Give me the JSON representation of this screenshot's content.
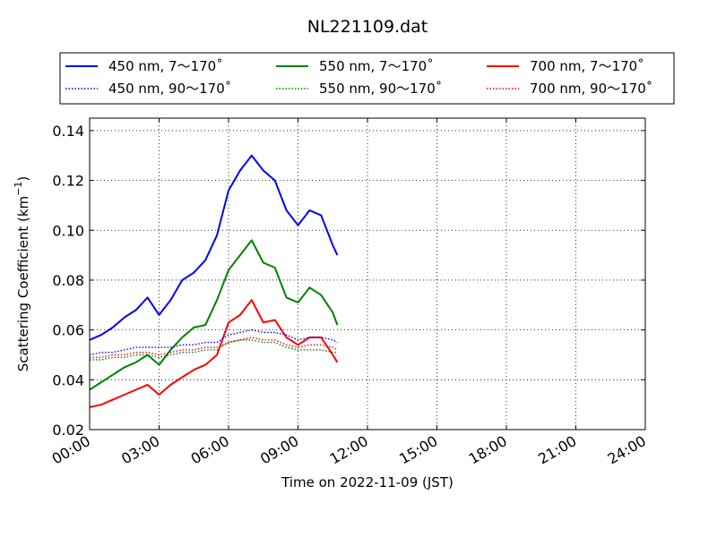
{
  "chart_data": {
    "type": "line",
    "title": "NL221109.dat",
    "xlabel": "Time on 2022-11-09 (JST)",
    "ylabel": "Scattering Coefficient (km",
    "ylabel_sup": "−1",
    "ylabel_end": ")",
    "xlim": [
      0,
      24
    ],
    "ylim": [
      0.02,
      0.145
    ],
    "grid": true,
    "legend_position": "top",
    "x_ticks": [
      "00:00",
      "03:00",
      "06:00",
      "09:00",
      "12:00",
      "15:00",
      "18:00",
      "21:00",
      "24:00"
    ],
    "x_tick_values": [
      0,
      3,
      6,
      9,
      12,
      15,
      18,
      21,
      24
    ],
    "y_ticks": [
      "0.02",
      "0.04",
      "0.06",
      "0.08",
      "0.10",
      "0.12",
      "0.14"
    ],
    "y_tick_values": [
      0.02,
      0.04,
      0.06,
      0.08,
      0.1,
      0.12,
      0.14
    ],
    "x": [
      0.0,
      0.5,
      1.0,
      1.5,
      2.0,
      2.5,
      3.0,
      3.5,
      4.0,
      4.5,
      5.0,
      5.5,
      6.0,
      6.5,
      7.0,
      7.5,
      8.0,
      8.5,
      9.0,
      9.5,
      10.0,
      10.5,
      10.7
    ],
    "series": [
      {
        "name": "450 nm, 7～170˚",
        "color": "#0000ff",
        "style": "solid",
        "values": [
          0.056,
          0.058,
          0.061,
          0.065,
          0.068,
          0.073,
          0.066,
          0.072,
          0.08,
          0.083,
          0.088,
          0.098,
          0.116,
          0.124,
          0.13,
          0.124,
          0.12,
          0.108,
          0.102,
          0.108,
          0.106,
          0.094,
          0.09
        ]
      },
      {
        "name": "550 nm, 7～170˚",
        "color": "#008000",
        "style": "solid",
        "values": [
          0.036,
          0.039,
          0.042,
          0.045,
          0.047,
          0.05,
          0.046,
          0.052,
          0.057,
          0.061,
          0.062,
          0.072,
          0.084,
          0.09,
          0.096,
          0.087,
          0.085,
          0.073,
          0.071,
          0.077,
          0.074,
          0.067,
          0.062
        ]
      },
      {
        "name": "700 nm, 7～170˚",
        "color": "#ff0000",
        "style": "solid",
        "values": [
          0.029,
          0.03,
          0.032,
          0.034,
          0.036,
          0.038,
          0.034,
          0.038,
          0.041,
          0.044,
          0.046,
          0.05,
          0.063,
          0.066,
          0.072,
          0.063,
          0.064,
          0.057,
          0.054,
          0.057,
          0.057,
          0.05,
          0.047
        ]
      },
      {
        "name": "450 nm, 90～170˚",
        "color": "#0000ff",
        "style": "dotted",
        "values": [
          0.05,
          0.051,
          0.051,
          0.052,
          0.053,
          0.053,
          0.053,
          0.053,
          0.054,
          0.054,
          0.055,
          0.055,
          0.058,
          0.059,
          0.06,
          0.059,
          0.059,
          0.058,
          0.056,
          0.057,
          0.057,
          0.056,
          0.055
        ]
      },
      {
        "name": "550 nm, 90～170˚",
        "color": "#008000",
        "style": "dotted",
        "values": [
          0.048,
          0.048,
          0.049,
          0.049,
          0.05,
          0.05,
          0.049,
          0.05,
          0.051,
          0.051,
          0.052,
          0.052,
          0.055,
          0.056,
          0.056,
          0.055,
          0.055,
          0.053,
          0.052,
          0.052,
          0.052,
          0.051,
          0.051
        ]
      },
      {
        "name": "700 nm, 90～170˚",
        "color": "#ff0000",
        "style": "dotted",
        "values": [
          0.049,
          0.049,
          0.05,
          0.05,
          0.051,
          0.051,
          0.05,
          0.051,
          0.052,
          0.052,
          0.053,
          0.053,
          0.055,
          0.056,
          0.057,
          0.056,
          0.056,
          0.054,
          0.053,
          0.054,
          0.054,
          0.053,
          0.052
        ]
      }
    ],
    "legend_order": [
      0,
      3,
      1,
      4,
      2,
      5
    ]
  }
}
